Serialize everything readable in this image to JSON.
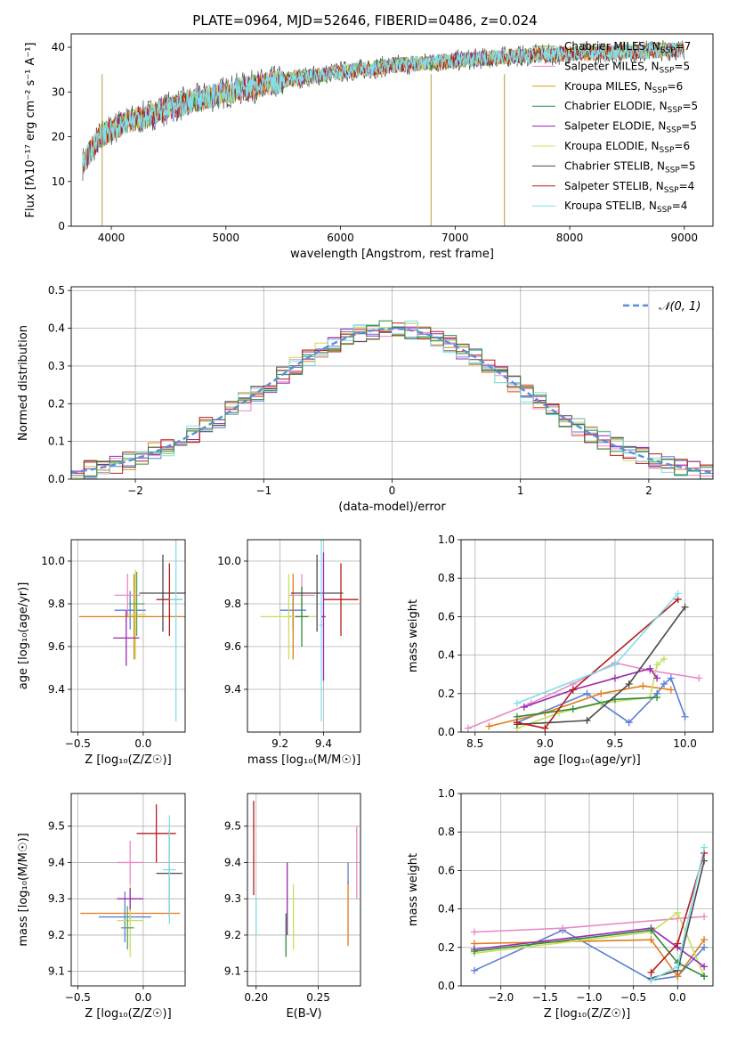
{
  "figure": {
    "title": "PLATE=0964, MJD=52646, FIBERID=0486, z=0.024"
  },
  "colors": {
    "Chabrier MILES": "#5fa55a",
    "Salpeter MILES": "#e08ad0",
    "Kroupa MILES": "#d9a100",
    "Chabrier ELODIE": "#2f8a3c",
    "Salpeter ELODIE": "#8e24aa",
    "Kroupa ELODIE": "#d4e157",
    "Chabrier STELIB": "#4a4a4a",
    "Salpeter STELIB": "#b71c1c",
    "Kroupa STELIB": "#80deea",
    "blue": "#5b7fd6",
    "orange": "#e07b1a",
    "pink": "#e88ac4",
    "lime": "#c5e05a",
    "purple": "#9c27b0",
    "teal": "#5bc8d0"
  },
  "chart_data": [
    {
      "id": "spectrum",
      "type": "line",
      "title": "PLATE=0964, MJD=52646, FIBERID=0486, z=0.024",
      "xlabel": "wavelength [Angstrom, rest frame]",
      "ylabel": "Flux [fλ10⁻¹⁷ erg cm⁻² s⁻¹ A⁻¹]",
      "xlim": [
        3650,
        9250
      ],
      "ylim": [
        0,
        43
      ],
      "xticks": [
        4000,
        5000,
        6000,
        7000,
        8000,
        9000
      ],
      "yticks": [
        0,
        10,
        20,
        30,
        40
      ],
      "legend_position": "right",
      "legend": [
        {
          "label": "Chabrier MILES, NSSP=7",
          "base": "Chabrier MILES, N",
          "sub": "SSP",
          "tail": "=7"
        },
        {
          "label": "Salpeter MILES, NSSP=5",
          "base": "Salpeter MILES, N",
          "sub": "SSP",
          "tail": "=5"
        },
        {
          "label": "Kroupa MILES, NSSP=6",
          "base": "Kroupa MILES, N",
          "sub": "SSP",
          "tail": "=6"
        },
        {
          "label": "Chabrier ELODIE, NSSP=5",
          "base": "Chabrier ELODIE, N",
          "sub": "SSP",
          "tail": "=5"
        },
        {
          "label": "Salpeter ELODIE, NSSP=5",
          "base": "Salpeter ELODIE, N",
          "sub": "SSP",
          "tail": "=5"
        },
        {
          "label": "Kroupa ELODIE, NSSP=6",
          "base": "Kroupa ELODIE, N",
          "sub": "SSP",
          "tail": "=6"
        },
        {
          "label": "Chabrier STELIB, NSSP=5",
          "base": "Chabrier STELIB, N",
          "sub": "SSP",
          "tail": "=5"
        },
        {
          "label": "Salpeter STELIB, NSSP=4",
          "base": "Salpeter STELIB, N",
          "sub": "SSP",
          "tail": "=4"
        },
        {
          "label": "Kroupa STELIB, NSSP=4",
          "base": "Kroupa STELIB, N",
          "sub": "SSP",
          "tail": "=4"
        }
      ],
      "continuum": [
        [
          3750,
          14
        ],
        [
          3900,
          20
        ],
        [
          4100,
          23
        ],
        [
          4300,
          24.5
        ],
        [
          4500,
          26.5
        ],
        [
          4800,
          28.5
        ],
        [
          5000,
          30
        ],
        [
          5300,
          31.5
        ],
        [
          5600,
          33
        ],
        [
          6000,
          34.5
        ],
        [
          6500,
          36
        ],
        [
          7000,
          37
        ],
        [
          7500,
          38
        ],
        [
          8000,
          38.5
        ],
        [
          8500,
          39
        ],
        [
          9000,
          39.5
        ]
      ],
      "spikes": [
        [
          3920,
          0
        ],
        [
          6790,
          0
        ],
        [
          7430,
          0
        ]
      ]
    },
    {
      "id": "residuals",
      "type": "line",
      "xlabel": "(data-model)/error",
      "ylabel": "Normed distribution",
      "xlim": [
        -2.5,
        2.5
      ],
      "ylim": [
        0,
        0.51
      ],
      "xticks": [
        -2,
        -1,
        0,
        1,
        2
      ],
      "yticks": [
        0.0,
        0.1,
        0.2,
        0.3,
        0.4,
        0.5
      ],
      "legend": [
        {
          "label": "𝒩(0, 1)"
        }
      ],
      "legend_position": "top-right",
      "bin_width": 0.1,
      "gaussian": {
        "mu": 0,
        "sigma": 1
      }
    },
    {
      "id": "age_vs_Z",
      "type": "scatter",
      "xlabel": "Z [log₁₀(Z/Z☉)]",
      "ylabel": "age  [log₁₀(age/yr)]",
      "xlim": [
        -0.55,
        0.32
      ],
      "ylim": [
        9.2,
        10.1
      ],
      "xticks": [
        -0.5,
        0.0
      ],
      "yticks": [
        9.4,
        9.6,
        9.8,
        10.0
      ],
      "errorbars": [
        {
          "x": -0.1,
          "y": 9.77,
          "xerr": 0.12,
          "yerr": 0.09,
          "color": "blue"
        },
        {
          "x": -0.07,
          "y": 9.74,
          "xerr": 0.42,
          "yerr": 0.2,
          "color": "orange"
        },
        {
          "x": -0.12,
          "y": 9.84,
          "xerr": 0.1,
          "yerr": 0.1,
          "color": "pink"
        },
        {
          "x": -0.06,
          "y": 9.75,
          "xerr": 0.08,
          "yerr": 0.21,
          "color": "lime"
        },
        {
          "x": -0.13,
          "y": 9.64,
          "xerr": 0.1,
          "yerr": 0.13,
          "color": "purple"
        },
        {
          "x": 0.15,
          "y": 9.85,
          "xerr": 0.18,
          "yerr": 0.18,
          "color": "Chabrier STELIB"
        },
        {
          "x": 0.2,
          "y": 9.82,
          "xerr": 0.1,
          "yerr": 0.17,
          "color": "Salpeter STELIB"
        },
        {
          "x": 0.25,
          "y": 9.82,
          "xerr": 0.05,
          "yerr": 0.57,
          "color": "Kroupa STELIB"
        },
        {
          "x": -0.05,
          "y": 9.8,
          "xerr": 0.06,
          "yerr": 0.15,
          "color": "Chabrier MILES"
        }
      ]
    },
    {
      "id": "age_vs_mass",
      "type": "scatter",
      "xlabel": "mass [log₁₀(M/M☉)]",
      "ylabel": "",
      "xlim": [
        9.05,
        9.57
      ],
      "ylim": [
        9.2,
        10.1
      ],
      "xticks": [
        9.2,
        9.4
      ],
      "yticks": [
        9.4,
        9.6,
        9.8,
        10.0
      ],
      "errorbars": [
        {
          "x": 9.26,
          "y": 9.77,
          "xerr": 0.06,
          "yerr": 0.09,
          "color": "blue"
        },
        {
          "x": 9.26,
          "y": 9.74,
          "xerr": 0.02,
          "yerr": 0.2,
          "color": "orange"
        },
        {
          "x": 9.3,
          "y": 9.84,
          "xerr": 0.06,
          "yerr": 0.1,
          "color": "pink"
        },
        {
          "x": 9.24,
          "y": 9.74,
          "xerr": 0.13,
          "yerr": 0.2,
          "color": "lime"
        },
        {
          "x": 9.3,
          "y": 9.74,
          "xerr": 0.03,
          "yerr": 0.14,
          "color": "Chabrier ELODIE"
        },
        {
          "x": 9.37,
          "y": 9.85,
          "xerr": 0.12,
          "yerr": 0.18,
          "color": "Chabrier STELIB"
        },
        {
          "x": 9.48,
          "y": 9.82,
          "xerr": 0.08,
          "yerr": 0.17,
          "color": "Salpeter STELIB"
        },
        {
          "x": 9.39,
          "y": 9.7,
          "xerr": 0.01,
          "yerr": 0.45,
          "color": "Kroupa STELIB"
        },
        {
          "x": 9.4,
          "y": 9.74,
          "xerr": 0.01,
          "yerr": 0.3,
          "color": "purple"
        }
      ]
    },
    {
      "id": "mass_weight_vs_age",
      "type": "line",
      "xlabel": "age  [log₁₀(age/yr)]",
      "ylabel": "mass weight",
      "xlim": [
        8.4,
        10.2
      ],
      "ylim": [
        0.0,
        1.0
      ],
      "xticks": [
        8.5,
        9.0,
        9.5,
        10.0
      ],
      "yticks": [
        0.0,
        0.2,
        0.4,
        0.6,
        0.8,
        1.0
      ],
      "series": [
        {
          "color": "blue",
          "x": [
            8.8,
            9.3,
            9.6,
            9.8,
            9.85,
            9.9,
            10.0
          ],
          "y": [
            0.05,
            0.2,
            0.05,
            0.2,
            0.25,
            0.28,
            0.08
          ]
        },
        {
          "color": "orange",
          "x": [
            8.6,
            9.0,
            9.4,
            9.7,
            9.9
          ],
          "y": [
            0.03,
            0.1,
            0.2,
            0.24,
            0.22
          ]
        },
        {
          "color": "pink",
          "x": [
            8.45,
            8.9,
            9.2,
            9.5,
            9.75,
            10.1
          ],
          "y": [
            0.02,
            0.15,
            0.25,
            0.36,
            0.32,
            0.28
          ]
        },
        {
          "color": "lime",
          "x": [
            8.8,
            9.1,
            9.4,
            9.75,
            9.8,
            9.85
          ],
          "y": [
            0.02,
            0.1,
            0.15,
            0.18,
            0.35,
            0.38
          ]
        },
        {
          "color": "purple",
          "x": [
            8.85,
            9.2,
            9.5,
            9.75,
            9.8
          ],
          "y": [
            0.13,
            0.22,
            0.28,
            0.33,
            0.28
          ]
        },
        {
          "color": "Chabrier ELODIE",
          "x": [
            8.8,
            9.2,
            9.5,
            9.8
          ],
          "y": [
            0.08,
            0.12,
            0.17,
            0.18
          ]
        },
        {
          "color": "Chabrier STELIB",
          "x": [
            8.8,
            9.3,
            9.6,
            10.0
          ],
          "y": [
            0.04,
            0.06,
            0.25,
            0.65
          ]
        },
        {
          "color": "Salpeter STELIB",
          "x": [
            8.8,
            9.0,
            9.2,
            9.95
          ],
          "y": [
            0.05,
            0.02,
            0.22,
            0.69
          ]
        },
        {
          "color": "Kroupa STELIB",
          "x": [
            8.8,
            9.5,
            9.95
          ],
          "y": [
            0.15,
            0.35,
            0.72
          ]
        }
      ]
    },
    {
      "id": "mass_vs_Z",
      "type": "scatter",
      "xlabel": "Z [log₁₀(Z/Z☉)]",
      "ylabel": "mass [log₁₀(M/M☉)]",
      "xlim": [
        -0.55,
        0.32
      ],
      "ylim": [
        9.06,
        9.59
      ],
      "xticks": [
        -0.5,
        0.0
      ],
      "yticks": [
        9.1,
        9.2,
        9.3,
        9.4,
        9.5
      ],
      "errorbars": [
        {
          "x": -0.14,
          "y": 9.25,
          "xerr": 0.2,
          "yerr": 0.07,
          "color": "blue"
        },
        {
          "x": -0.1,
          "y": 9.26,
          "xerr": 0.38,
          "yerr": 0.02,
          "color": "orange"
        },
        {
          "x": -0.1,
          "y": 9.4,
          "xerr": 0.1,
          "yerr": 0.06,
          "color": "pink"
        },
        {
          "x": -0.1,
          "y": 9.24,
          "xerr": 0.1,
          "yerr": 0.1,
          "color": "lime"
        },
        {
          "x": -0.1,
          "y": 9.3,
          "xerr": 0.1,
          "yerr": 0.03,
          "color": "purple"
        },
        {
          "x": 0.2,
          "y": 9.37,
          "xerr": 0.1,
          "yerr": 0.12,
          "color": "Chabrier STELIB"
        },
        {
          "x": 0.1,
          "y": 9.48,
          "xerr": 0.15,
          "yerr": 0.08,
          "color": "Salpeter STELIB"
        },
        {
          "x": 0.2,
          "y": 9.38,
          "xerr": 0.05,
          "yerr": 0.15,
          "color": "Kroupa STELIB"
        },
        {
          "x": -0.12,
          "y": 9.22,
          "xerr": 0.05,
          "yerr": 0.06,
          "color": "Chabrier MILES"
        }
      ]
    },
    {
      "id": "mass_vs_ebv",
      "type": "scatter",
      "xlabel": "E(B-V)",
      "ylabel": "",
      "xlim": [
        0.193,
        0.284
      ],
      "ylim": [
        9.06,
        9.59
      ],
      "xticks": [
        0.2,
        0.25
      ],
      "yticks": [
        9.1,
        9.2,
        9.3,
        9.4,
        9.5
      ],
      "errorbars": [
        {
          "x": 0.198,
          "y": 9.44,
          "yerr": 0.13,
          "color": "Salpeter STELIB"
        },
        {
          "x": 0.2,
          "y": 9.25,
          "yerr": 0.05,
          "color": "Kroupa STELIB"
        },
        {
          "x": 0.225,
          "y": 9.3,
          "yerr": 0.1,
          "color": "purple"
        },
        {
          "x": 0.224,
          "y": 9.2,
          "yerr": 0.06,
          "color": "Chabrier ELODIE"
        },
        {
          "x": 0.23,
          "y": 9.25,
          "yerr": 0.09,
          "color": "lime"
        },
        {
          "x": 0.274,
          "y": 9.26,
          "yerr": 0.09,
          "color": "orange"
        },
        {
          "x": 0.274,
          "y": 9.37,
          "yerr": 0.03,
          "color": "blue"
        },
        {
          "x": 0.281,
          "y": 9.4,
          "yerr": 0.1,
          "color": "pink"
        }
      ]
    },
    {
      "id": "mass_weight_vs_Z",
      "type": "line",
      "xlabel": "Z [log₁₀(Z/Z☉)]",
      "ylabel": "mass weight",
      "xlim": [
        -2.45,
        0.4
      ],
      "ylim": [
        0.0,
        1.0
      ],
      "xticks": [
        -2.0,
        -1.5,
        -1.0,
        -0.5,
        0.0
      ],
      "yticks": [
        0.0,
        0.2,
        0.4,
        0.6,
        0.8,
        1.0
      ],
      "series": [
        {
          "color": "blue",
          "x": [
            -2.3,
            -1.3,
            -0.3,
            0.0,
            0.3
          ],
          "y": [
            0.08,
            0.29,
            0.03,
            0.05,
            0.2
          ]
        },
        {
          "color": "orange",
          "x": [
            -2.3,
            -0.3,
            0.0,
            0.3
          ],
          "y": [
            0.22,
            0.24,
            0.05,
            0.24
          ]
        },
        {
          "color": "pink",
          "x": [
            -2.3,
            -1.3,
            0.0,
            0.3
          ],
          "y": [
            0.28,
            0.3,
            0.35,
            0.36
          ]
        },
        {
          "color": "lime",
          "x": [
            -2.3,
            -0.3,
            0.0,
            0.3
          ],
          "y": [
            0.17,
            0.28,
            0.38,
            0.05
          ]
        },
        {
          "color": "purple",
          "x": [
            -2.3,
            -0.3,
            0.0,
            0.3
          ],
          "y": [
            0.19,
            0.3,
            0.2,
            0.1
          ]
        },
        {
          "color": "Chabrier ELODIE",
          "x": [
            -2.3,
            -0.3,
            0.0,
            0.3
          ],
          "y": [
            0.18,
            0.29,
            0.12,
            0.05
          ]
        },
        {
          "color": "Chabrier STELIB",
          "x": [
            -0.3,
            0.0,
            0.3
          ],
          "y": [
            0.04,
            0.08,
            0.65
          ]
        },
        {
          "color": "Salpeter STELIB",
          "x": [
            -0.3,
            0.0,
            0.3
          ],
          "y": [
            0.07,
            0.22,
            0.69
          ]
        },
        {
          "color": "Kroupa STELIB",
          "x": [
            -0.3,
            0.0,
            0.3
          ],
          "y": [
            0.03,
            0.1,
            0.72
          ]
        }
      ]
    }
  ]
}
